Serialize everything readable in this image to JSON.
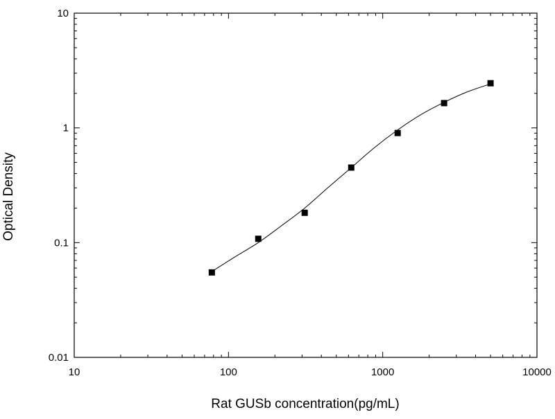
{
  "chart_data": {
    "type": "scatter",
    "title": "",
    "xlabel": "Rat GUSb concentration(pg/mL)",
    "ylabel": "Optical Density",
    "x_scale": "log",
    "y_scale": "log",
    "xlim": [
      10,
      10000
    ],
    "ylim": [
      0.01,
      10
    ],
    "x_ticks": [
      10,
      100,
      1000,
      10000
    ],
    "x_tick_labels": [
      "10",
      "100",
      "1000",
      "10000"
    ],
    "y_ticks": [
      0.01,
      0.1,
      1,
      10
    ],
    "y_tick_labels": [
      "0.01",
      "0.1",
      "1",
      "10"
    ],
    "grid": false,
    "legend": "none",
    "series": [
      {
        "marker": "square",
        "color": "#000000",
        "x": [
          78,
          156,
          312,
          625,
          1250,
          2500,
          5000
        ],
        "y": [
          0.055,
          0.108,
          0.182,
          0.451,
          0.902,
          1.645,
          2.45
        ]
      }
    ],
    "fit_curve": {
      "color": "#000000",
      "x": [
        78,
        110,
        156,
        220,
        312,
        440,
        625,
        880,
        1250,
        1760,
        2500,
        3500,
        5000
      ],
      "y": [
        0.056,
        0.075,
        0.1,
        0.14,
        0.2,
        0.3,
        0.45,
        0.67,
        0.96,
        1.3,
        1.67,
        2.05,
        2.42
      ]
    }
  }
}
